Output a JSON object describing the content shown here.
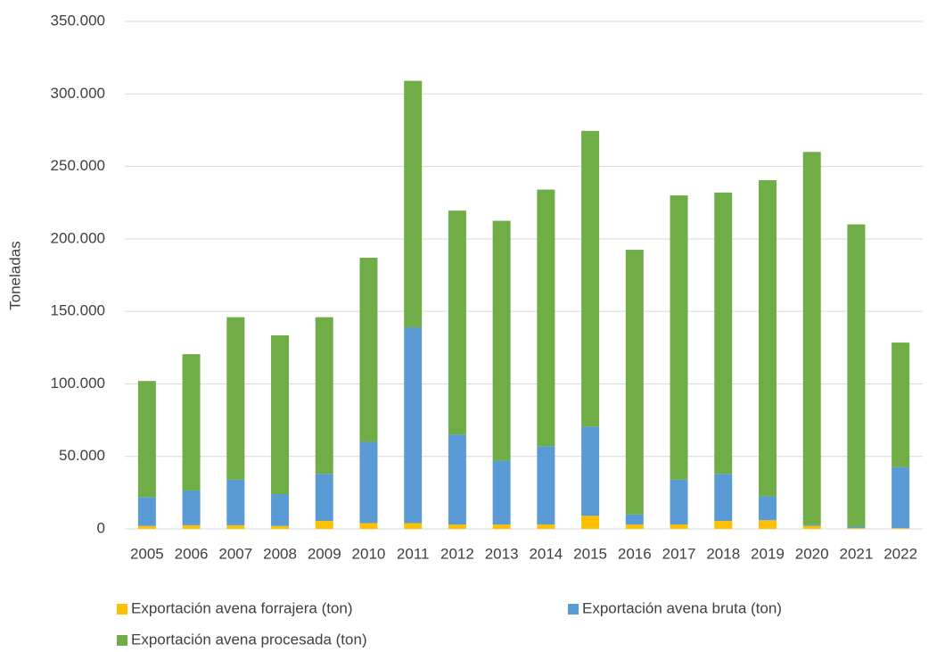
{
  "chart_data": {
    "type": "stacked_bar",
    "y_label": "Toneladas",
    "categories": [
      "2005",
      "2006",
      "2007",
      "2008",
      "2009",
      "2010",
      "2011",
      "2012",
      "2013",
      "2014",
      "2015",
      "2016",
      "2017",
      "2018",
      "2019",
      "2020",
      "2021",
      "2022"
    ],
    "series": [
      {
        "name": "Exportación avena forrajera (ton)",
        "color": "#ffc000",
        "values": [
          2000,
          2500,
          2500,
          2000,
          5500,
          4000,
          4000,
          3000,
          3000,
          3000,
          9000,
          3000,
          3000,
          5500,
          6000,
          2000,
          500,
          500
        ]
      },
      {
        "name": "Exportación avena bruta (ton)",
        "color": "#5b9bd5",
        "values": [
          20000,
          24000,
          31500,
          22000,
          32500,
          56000,
          135000,
          62000,
          44000,
          54000,
          61500,
          7000,
          31000,
          32500,
          16500,
          500,
          1000,
          42000
        ]
      },
      {
        "name": "Exportación avena procesada (ton)",
        "color": "#70ad47",
        "values": [
          80000,
          94000,
          112000,
          109500,
          108000,
          127000,
          170000,
          154500,
          165500,
          177000,
          204000,
          182500,
          196000,
          194000,
          218000,
          257500,
          208500,
          86000
        ]
      }
    ],
    "ylim": [
      0,
      350000
    ],
    "yticks": [
      0,
      {
        "value": 50000,
        "label": "50.000"
      },
      {
        "value": 100000,
        "label": "100.000"
      },
      {
        "value": 150000,
        "label": "150.000"
      },
      {
        "value": 200000,
        "label": "200.000"
      },
      {
        "value": 250000,
        "label": "250.000"
      },
      {
        "value": 300000,
        "label": "300.000"
      },
      {
        "value": 350000,
        "label": "350.000"
      }
    ],
    "grid": true,
    "legend": "bottom"
  }
}
